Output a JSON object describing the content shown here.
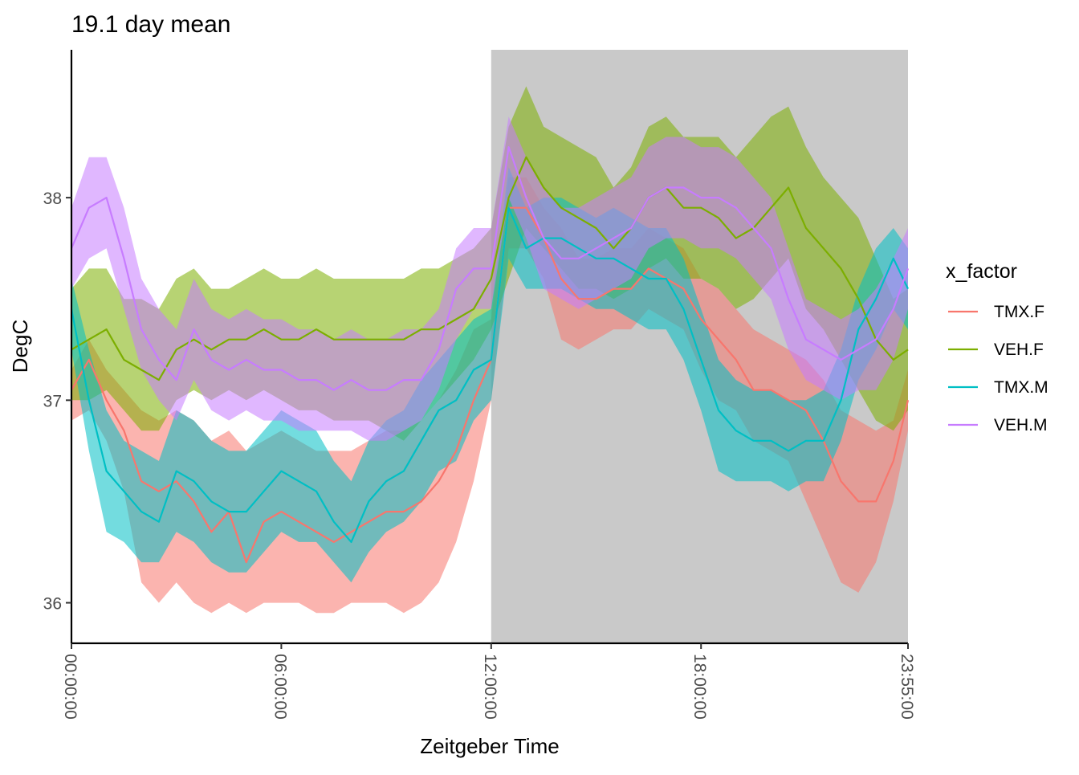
{
  "chart_data": {
    "type": "line",
    "title": "19.1 day mean",
    "xlabel": "Zeitgeber Time",
    "ylabel": "DegC",
    "x_unit": "hours",
    "xlim": [
      0,
      23.9167
    ],
    "ylim": [
      35.8,
      38.73
    ],
    "x_ticks": [
      {
        "value": 0,
        "label": "00:00:00"
      },
      {
        "value": 6,
        "label": "06:00:00"
      },
      {
        "value": 12,
        "label": "12:00:00"
      },
      {
        "value": 18,
        "label": "18:00:00"
      },
      {
        "value": 23.9167,
        "label": "23:55:00"
      }
    ],
    "y_ticks": [
      {
        "value": 36,
        "label": "36"
      },
      {
        "value": 37,
        "label": "37"
      },
      {
        "value": 38,
        "label": "38"
      }
    ],
    "dark_period": [
      12,
      23.9167
    ],
    "dark_color": "#c9c9c9",
    "grid": false,
    "legend_title": "x_factor",
    "legend_position": "right",
    "x": [
      0,
      0.5,
      1,
      1.5,
      2,
      2.5,
      3,
      3.5,
      4,
      4.5,
      5,
      5.5,
      6,
      6.5,
      7,
      7.5,
      8,
      8.5,
      9,
      9.5,
      10,
      10.5,
      11,
      11.5,
      12,
      12.5,
      13,
      13.5,
      14,
      14.5,
      15,
      15.5,
      16,
      16.5,
      17,
      17.5,
      18,
      18.5,
      19,
      19.5,
      20,
      20.5,
      21,
      21.5,
      22,
      22.5,
      23,
      23.5,
      23.9167
    ],
    "series": [
      {
        "name": "TMX.F",
        "color": "#F8766D",
        "mean": [
          37.05,
          37.2,
          37.0,
          36.85,
          36.6,
          36.55,
          36.6,
          36.5,
          36.35,
          36.45,
          36.2,
          36.4,
          36.45,
          36.4,
          36.35,
          36.3,
          36.35,
          36.4,
          36.45,
          36.45,
          36.5,
          36.6,
          36.75,
          37.0,
          37.2,
          37.95,
          37.95,
          37.8,
          37.6,
          37.5,
          37.5,
          37.55,
          37.55,
          37.65,
          37.6,
          37.55,
          37.4,
          37.3,
          37.2,
          37.05,
          37.05,
          37.0,
          36.95,
          36.8,
          36.6,
          36.5,
          36.5,
          36.7,
          37.0
        ],
        "lower": [
          36.9,
          36.95,
          36.8,
          36.55,
          36.1,
          36.0,
          36.1,
          36.0,
          35.95,
          36.0,
          35.95,
          36.0,
          36.0,
          36.0,
          35.95,
          35.95,
          36.0,
          36.0,
          36.0,
          35.95,
          36.0,
          36.1,
          36.3,
          36.6,
          37.0,
          37.75,
          37.75,
          37.6,
          37.3,
          37.25,
          37.3,
          37.35,
          37.35,
          37.45,
          37.4,
          37.35,
          37.15,
          37.0,
          36.95,
          36.8,
          36.75,
          36.7,
          36.5,
          36.3,
          36.1,
          36.05,
          36.2,
          36.5,
          36.85
        ],
        "upper": [
          37.15,
          37.3,
          37.15,
          37.05,
          36.95,
          36.9,
          36.95,
          36.9,
          36.8,
          36.85,
          36.75,
          36.8,
          36.85,
          36.8,
          36.75,
          36.75,
          36.75,
          36.8,
          36.85,
          36.85,
          36.9,
          37.0,
          37.15,
          37.35,
          37.4,
          38.1,
          38.1,
          37.95,
          37.85,
          37.7,
          37.7,
          37.75,
          37.75,
          37.85,
          37.8,
          37.75,
          37.6,
          37.55,
          37.45,
          37.35,
          37.3,
          37.25,
          37.2,
          37.1,
          36.95,
          36.9,
          36.85,
          36.9,
          37.15
        ]
      },
      {
        "name": "VEH.F",
        "color": "#7CAE00",
        "mean": [
          37.25,
          37.3,
          37.35,
          37.2,
          37.15,
          37.1,
          37.25,
          37.3,
          37.25,
          37.3,
          37.3,
          37.35,
          37.3,
          37.3,
          37.35,
          37.3,
          37.3,
          37.3,
          37.3,
          37.3,
          37.35,
          37.35,
          37.4,
          37.45,
          37.6,
          38.0,
          38.2,
          38.05,
          37.95,
          37.9,
          37.85,
          37.75,
          37.85,
          38.0,
          38.05,
          37.95,
          37.95,
          37.9,
          37.8,
          37.85,
          37.95,
          38.05,
          37.85,
          37.75,
          37.65,
          37.5,
          37.3,
          37.2,
          37.25
        ],
        "lower": [
          37.0,
          37.0,
          37.05,
          36.95,
          36.85,
          36.85,
          37.0,
          37.05,
          37.0,
          37.05,
          37.0,
          37.05,
          37.0,
          36.95,
          36.95,
          36.9,
          36.9,
          36.9,
          36.85,
          36.8,
          36.9,
          37.0,
          37.1,
          37.2,
          37.35,
          37.6,
          37.85,
          37.75,
          37.65,
          37.55,
          37.55,
          37.5,
          37.55,
          37.65,
          37.7,
          37.6,
          37.6,
          37.55,
          37.45,
          37.5,
          37.6,
          37.7,
          37.45,
          37.35,
          37.2,
          37.05,
          36.9,
          36.85,
          36.95
        ],
        "upper": [
          37.55,
          37.65,
          37.65,
          37.5,
          37.5,
          37.45,
          37.6,
          37.65,
          37.55,
          37.55,
          37.6,
          37.65,
          37.6,
          37.6,
          37.65,
          37.6,
          37.6,
          37.6,
          37.6,
          37.6,
          37.65,
          37.65,
          37.7,
          37.75,
          37.85,
          38.35,
          38.55,
          38.35,
          38.3,
          38.25,
          38.2,
          38.05,
          38.15,
          38.35,
          38.4,
          38.3,
          38.3,
          38.3,
          38.2,
          38.3,
          38.4,
          38.45,
          38.25,
          38.1,
          38.0,
          37.9,
          37.7,
          37.5,
          37.55
        ]
      },
      {
        "name": "TMX.M",
        "color": "#00BFC4",
        "mean": [
          37.45,
          37.0,
          36.65,
          36.55,
          36.45,
          36.4,
          36.65,
          36.6,
          36.5,
          36.45,
          36.45,
          36.55,
          36.65,
          36.6,
          36.55,
          36.4,
          36.3,
          36.5,
          36.6,
          36.65,
          36.8,
          36.95,
          37.0,
          37.15,
          37.2,
          37.95,
          37.75,
          37.8,
          37.8,
          37.75,
          37.7,
          37.7,
          37.65,
          37.6,
          37.6,
          37.45,
          37.2,
          36.95,
          36.85,
          36.8,
          36.8,
          36.75,
          36.8,
          36.8,
          37.0,
          37.35,
          37.5,
          37.7,
          37.55
        ],
        "lower": [
          37.25,
          36.75,
          36.35,
          36.3,
          36.2,
          36.2,
          36.35,
          36.3,
          36.2,
          36.15,
          36.15,
          36.25,
          36.35,
          36.3,
          36.3,
          36.2,
          36.1,
          36.25,
          36.35,
          36.4,
          36.5,
          36.65,
          36.7,
          36.9,
          37.0,
          37.7,
          37.55,
          37.55,
          37.55,
          37.5,
          37.45,
          37.45,
          37.4,
          37.35,
          37.35,
          37.2,
          36.95,
          36.65,
          36.6,
          36.6,
          36.6,
          36.55,
          36.6,
          36.6,
          36.8,
          37.1,
          37.25,
          37.45,
          37.35
        ],
        "upper": [
          37.6,
          37.25,
          36.95,
          36.8,
          36.75,
          36.7,
          36.95,
          36.9,
          36.8,
          36.75,
          36.75,
          36.85,
          36.95,
          36.9,
          36.85,
          36.7,
          36.6,
          36.8,
          36.9,
          36.95,
          37.1,
          37.2,
          37.3,
          37.4,
          37.45,
          38.15,
          37.95,
          38.0,
          38.0,
          37.95,
          37.9,
          37.95,
          37.9,
          37.85,
          37.85,
          37.7,
          37.45,
          37.2,
          37.1,
          37.05,
          37.05,
          37.0,
          37.0,
          37.05,
          37.25,
          37.55,
          37.75,
          37.85,
          37.75
        ]
      },
      {
        "name": "VEH.M",
        "color": "#C77CFF",
        "mean": [
          37.75,
          37.95,
          38.0,
          37.7,
          37.35,
          37.2,
          37.1,
          37.35,
          37.2,
          37.15,
          37.2,
          37.15,
          37.15,
          37.1,
          37.1,
          37.05,
          37.1,
          37.05,
          37.05,
          37.1,
          37.1,
          37.25,
          37.55,
          37.65,
          37.65,
          38.25,
          38.0,
          37.8,
          37.7,
          37.7,
          37.75,
          37.8,
          37.85,
          38.0,
          38.05,
          38.05,
          38.0,
          38.0,
          37.95,
          37.85,
          37.75,
          37.5,
          37.3,
          37.25,
          37.2,
          37.25,
          37.3,
          37.45,
          37.65
        ],
        "lower": [
          37.55,
          37.7,
          37.75,
          37.45,
          37.15,
          37.0,
          36.9,
          37.1,
          36.95,
          36.9,
          36.95,
          36.9,
          36.9,
          36.85,
          36.85,
          36.85,
          36.85,
          36.8,
          36.8,
          36.85,
          36.9,
          37.05,
          37.3,
          37.45,
          37.45,
          38.0,
          37.8,
          37.55,
          37.5,
          37.45,
          37.5,
          37.55,
          37.6,
          37.75,
          37.8,
          37.8,
          37.75,
          37.75,
          37.7,
          37.6,
          37.5,
          37.25,
          37.1,
          37.05,
          37.0,
          37.05,
          37.05,
          37.2,
          37.45
        ],
        "upper": [
          37.95,
          38.2,
          38.2,
          37.95,
          37.6,
          37.45,
          37.35,
          37.6,
          37.45,
          37.4,
          37.45,
          37.4,
          37.4,
          37.35,
          37.35,
          37.3,
          37.35,
          37.3,
          37.3,
          37.35,
          37.35,
          37.45,
          37.75,
          37.85,
          37.85,
          38.4,
          38.2,
          38.05,
          37.95,
          37.95,
          38.0,
          38.05,
          38.1,
          38.25,
          38.3,
          38.3,
          38.25,
          38.25,
          38.2,
          38.1,
          38.0,
          37.75,
          37.5,
          37.45,
          37.4,
          37.45,
          37.55,
          37.7,
          37.85
        ]
      }
    ]
  }
}
